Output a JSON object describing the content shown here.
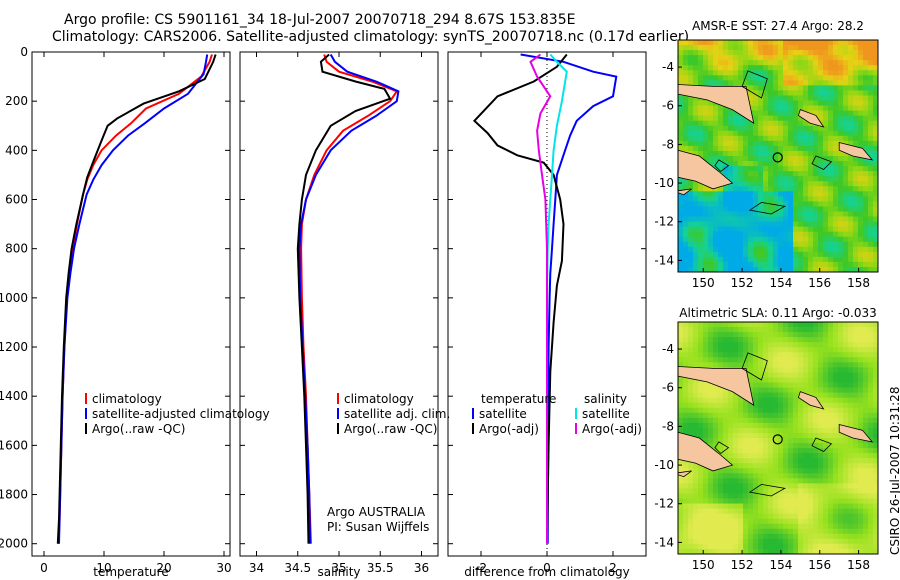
{
  "header": {
    "line1": "Argo profile: CS 5901161_34 18-Jul-2007 20070718_294 8.67S 153.835E",
    "line2": "Climatology: CARS2006. Satellite-adjusted climatology: synTS_20070718.nc (0.17d earlier)"
  },
  "side_label": "CSIRO 26-Jul-2007 10:31:28",
  "chart_data": [
    {
      "id": "temp",
      "type": "line",
      "xlabel": "temperature",
      "xlim": [
        -2,
        31
      ],
      "ylim": [
        2050,
        0
      ],
      "xticks": [
        0,
        10,
        20,
        30
      ],
      "xtick_labels": [
        "0",
        "10",
        "20",
        "30"
      ],
      "yticks": [
        0,
        200,
        400,
        600,
        800,
        1000,
        1200,
        1400,
        1600,
        1800,
        2000
      ],
      "ytick_labels": [
        "0",
        "200",
        "400",
        "600",
        "800",
        "1000",
        "1200",
        "1400",
        "1600",
        "1800",
        "2000"
      ],
      "legend": [
        "climatology",
        "satellite-adjusted climatology",
        "Argo(..raw -QC)"
      ],
      "series": [
        {
          "name": "climatology",
          "color": "#ff0000",
          "x": [
            28,
            27.6,
            26.2,
            22.5,
            17,
            14.5,
            12,
            9.6,
            8.2,
            7.2,
            6.5,
            5.5,
            4.8,
            4.2,
            3.8,
            3.4,
            3.1,
            2.9,
            2.7,
            2.6,
            2.4
          ],
          "y": [
            10,
            40,
            100,
            170,
            230,
            290,
            340,
            400,
            460,
            520,
            580,
            700,
            800,
            900,
            1000,
            1200,
            1400,
            1600,
            1800,
            1900,
            2000
          ]
        },
        {
          "name": "satellite-adjusted climatology",
          "color": "#0000ff",
          "x": [
            27.2,
            27,
            26.6,
            24,
            20,
            16.8,
            14,
            11.5,
            9.6,
            8.2,
            7.1,
            5.9,
            5,
            4.4,
            3.9,
            3.4,
            3.1,
            2.9,
            2.7,
            2.6,
            2.5
          ],
          "y": [
            10,
            40,
            90,
            170,
            230,
            290,
            340,
            400,
            460,
            520,
            580,
            700,
            800,
            900,
            1000,
            1200,
            1400,
            1600,
            1800,
            1900,
            2000
          ]
        },
        {
          "name": "Argo(..raw -QC)",
          "color": "#000000",
          "x": [
            28.6,
            28.2,
            26.8,
            22.5,
            16.6,
            12.2,
            10.6,
            9.6,
            8.3,
            7.2,
            6.5,
            5.4,
            4.6,
            4.1,
            3.7,
            3.3,
            3,
            2.8,
            2.6,
            2.5,
            2.3
          ],
          "y": [
            10,
            40,
            110,
            160,
            210,
            270,
            300,
            360,
            440,
            510,
            580,
            700,
            800,
            900,
            1000,
            1200,
            1400,
            1600,
            1800,
            1900,
            2000
          ]
        }
      ]
    },
    {
      "id": "sal",
      "type": "line",
      "xlabel": "salinity",
      "xlim": [
        33.8,
        36.2
      ],
      "ylim": [
        2050,
        0
      ],
      "xticks": [
        34,
        34.5,
        35,
        35.5,
        36
      ],
      "xtick_labels": [
        "34",
        "34.5",
        "35",
        "35.5",
        "36"
      ],
      "legend": [
        "climatology",
        "satellite adj. clim.",
        "Argo(..raw -QC)"
      ],
      "annotation": [
        "Argo AUSTRALIA",
        "PI: Susan Wijffels"
      ],
      "series": [
        {
          "name": "climatology",
          "color": "#ff0000",
          "x": [
            34.82,
            34.85,
            35,
            35.4,
            35.7,
            35.62,
            35.35,
            35.05,
            34.85,
            34.7,
            34.6,
            34.55,
            34.54,
            34.55,
            34.57,
            34.6,
            34.62,
            34.64,
            34.66
          ],
          "y": [
            10,
            40,
            80,
            120,
            160,
            200,
            260,
            320,
            400,
            500,
            600,
            700,
            800,
            1000,
            1200,
            1400,
            1600,
            1800,
            2000
          ]
        },
        {
          "name": "satellite adj. clim.",
          "color": "#0000ff",
          "x": [
            34.9,
            34.95,
            35.1,
            35.45,
            35.72,
            35.7,
            35.45,
            35.15,
            34.9,
            34.72,
            34.6,
            34.54,
            34.52,
            34.53,
            34.56,
            34.59,
            34.62,
            34.64,
            34.65
          ],
          "y": [
            10,
            40,
            80,
            120,
            160,
            200,
            260,
            320,
            400,
            500,
            600,
            700,
            800,
            1000,
            1200,
            1400,
            1600,
            1800,
            2000
          ]
        },
        {
          "name": "Argo(..raw -QC)",
          "color": "#000000",
          "x": [
            34.88,
            34.78,
            34.8,
            35.2,
            35.55,
            35.62,
            35.2,
            34.9,
            34.72,
            34.6,
            34.55,
            34.52,
            34.5,
            34.52,
            34.55,
            34.58,
            34.6,
            34.62,
            34.63
          ],
          "y": [
            10,
            40,
            80,
            120,
            150,
            190,
            240,
            300,
            400,
            500,
            600,
            700,
            800,
            1000,
            1200,
            1400,
            1600,
            1800,
            2000
          ]
        }
      ]
    },
    {
      "id": "diff",
      "type": "line",
      "xlabel": "difference from climatology",
      "xlim": [
        -3,
        3
      ],
      "ylim": [
        2050,
        0
      ],
      "xticks": [
        -2,
        0,
        2
      ],
      "xtick_labels": [
        "-2",
        "0",
        "2"
      ],
      "legend_temperature": {
        "title": "temperature",
        "items": [
          "satellite",
          "Argo(-adj)"
        ]
      },
      "legend_salinity": {
        "title": "salinity",
        "items": [
          "satellite",
          "Argo(-adj)"
        ]
      },
      "series": [
        {
          "name": "temperature satellite",
          "color": "#0000ff",
          "x": [
            -0.8,
            0.5,
            1.4,
            2.1,
            2,
            1.4,
            0.9,
            0.7,
            0.55,
            0.4,
            0.3,
            0.25,
            0.2,
            0.15,
            0.1,
            0.08,
            0.05,
            0.03,
            0.02
          ],
          "y": [
            10,
            40,
            80,
            100,
            180,
            220,
            280,
            340,
            400,
            460,
            500,
            600,
            700,
            800,
            900,
            1000,
            1200,
            1600,
            2000
          ]
        },
        {
          "name": "temperature Argo(-adj)",
          "color": "#000000",
          "x": [
            0.6,
            0.3,
            -0.4,
            -1.5,
            -2.2,
            -1.8,
            -1.5,
            -0.9,
            -0.1,
            0.2,
            0.4,
            0.5,
            0.45,
            0.3,
            0.2,
            0.1,
            0.05,
            0
          ],
          "y": [
            10,
            60,
            120,
            180,
            280,
            330,
            380,
            420,
            450,
            500,
            600,
            700,
            850,
            950,
            1100,
            1300,
            1600,
            2000
          ]
        },
        {
          "name": "salinity satellite",
          "color": "#00e5e5",
          "x": [
            0.1,
            0.3,
            0.6,
            0.45,
            0.3,
            0.2,
            0.15,
            0.1,
            0.05,
            0.02,
            0,
            0,
            0
          ],
          "y": [
            10,
            40,
            80,
            200,
            300,
            400,
            500,
            600,
            700,
            800,
            1000,
            1500,
            2000
          ]
        },
        {
          "name": "salinity Argo(-adj)",
          "color": "#e600e6",
          "x": [
            -0.2,
            -0.5,
            -0.3,
            0.1,
            -0.2,
            -0.3,
            -0.25,
            -0.15,
            -0.05,
            0,
            0,
            0
          ],
          "y": [
            10,
            40,
            100,
            180,
            250,
            320,
            400,
            500,
            600,
            800,
            1200,
            2000
          ]
        }
      ]
    },
    {
      "id": "sst_map",
      "type": "heatmap",
      "title": "AMSR-E SST: 27.4  Argo: 28.2",
      "xlim": [
        148.7,
        159
      ],
      "ylim": [
        -14.6,
        -2.6
      ],
      "xticks": [
        150,
        152,
        154,
        156,
        158
      ],
      "xtick_labels": [
        "150",
        "152",
        "154",
        "156",
        "158"
      ],
      "yticks": [
        -4,
        -6,
        -8,
        -10,
        -12,
        -14
      ],
      "ytick_labels": [
        "-4",
        "-6",
        "-8",
        "-10",
        "-12",
        "-14"
      ],
      "marker": {
        "lon": 153.835,
        "lat": -8.67
      }
    },
    {
      "id": "sla_map",
      "type": "heatmap",
      "title": "Altimetric SLA: 0.11  Argo: -0.033",
      "xlim": [
        148.7,
        159
      ],
      "ylim": [
        -14.6,
        -2.6
      ],
      "xticks": [
        150,
        152,
        154,
        156,
        158
      ],
      "xtick_labels": [
        "150",
        "152",
        "154",
        "156",
        "158"
      ],
      "yticks": [
        -4,
        -6,
        -8,
        -10,
        -12,
        -14
      ],
      "ytick_labels": [
        "-4",
        "-6",
        "-8",
        "-10",
        "-12",
        "-14"
      ],
      "marker": {
        "lon": 153.835,
        "lat": -8.67
      }
    }
  ]
}
